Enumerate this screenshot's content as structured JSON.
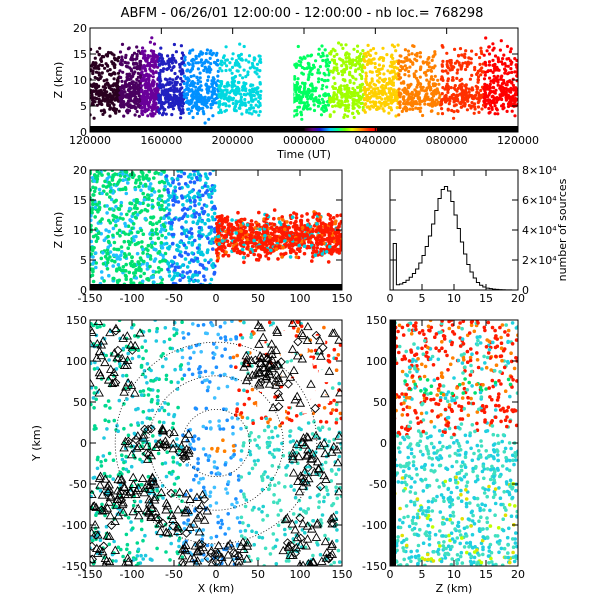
{
  "title": "ABFM - 06/26/01 12:00:00 - 12:00:00 - nb loc.= 768298",
  "colors": {
    "axis": "#000000",
    "background": "#ffffff"
  },
  "chart_data": [
    {
      "id": "time-height",
      "type": "scatter",
      "title": "ABFM - 06/26/01 12:00:00 - 12:00:00 - nb loc.= 768298",
      "xlabel": "Time (UT)",
      "ylabel": "Z (km)",
      "x_tick_labels": [
        "120000",
        "160000",
        "200000",
        "000000",
        "040000",
        "080000",
        "120000"
      ],
      "y_ticks": [
        0,
        5,
        10,
        15,
        20
      ],
      "ylim": [
        0,
        20
      ],
      "color_encoding": "time (rainbow, purple to red)"
    },
    {
      "id": "xz-projection",
      "type": "scatter",
      "xlabel": "",
      "ylabel": "Z (km)",
      "xlim": [
        -150,
        150
      ],
      "ylim": [
        0,
        20
      ],
      "x_ticks": [
        -150,
        -100,
        -50,
        0,
        50,
        100,
        150
      ],
      "y_ticks": [
        0,
        5,
        10,
        15,
        20
      ]
    },
    {
      "id": "altitude-histogram",
      "type": "line",
      "xlabel": "",
      "ylabel": "number of sources",
      "xlim": [
        0,
        20
      ],
      "ylim": [
        0,
        80000
      ],
      "x_ticks": [
        0,
        5,
        10,
        15,
        20
      ],
      "y_tick_labels": [
        "0",
        "2×10⁴",
        "4×10⁴",
        "6×10⁴",
        "8×10⁴"
      ],
      "series": [
        {
          "x": [
            0,
            0.5,
            1,
            1.5,
            2,
            2.5,
            3,
            3.5,
            4,
            4.5,
            5,
            5.5,
            6,
            6.5,
            7,
            7.5,
            8,
            8.5,
            9,
            9.5,
            10,
            10.5,
            11,
            11.5,
            12,
            12.5,
            13,
            13.5,
            14,
            14.5,
            15,
            15.5,
            16,
            16.5,
            17,
            17.5,
            18,
            18.5,
            19,
            19.5
          ],
          "y": [
            0,
            31000,
            3500,
            4000,
            5000,
            6500,
            8500,
            11000,
            14000,
            18000,
            23000,
            29000,
            36000,
            44000,
            53000,
            61000,
            67000,
            69000,
            66000,
            59000,
            50000,
            41000,
            32000,
            24000,
            17000,
            12000,
            8000,
            5000,
            3200,
            2000,
            1300,
            900,
            600,
            400,
            250,
            150,
            100,
            60,
            30,
            0
          ]
        }
      ]
    },
    {
      "id": "plan-view",
      "type": "scatter",
      "xlabel": "X (km)",
      "ylabel": "Y (km)",
      "xlim": [
        -150,
        150
      ],
      "ylim": [
        -150,
        150
      ],
      "x_ticks": [
        -150,
        -100,
        -50,
        0,
        50,
        100,
        150
      ],
      "y_ticks": [
        -150,
        -100,
        -50,
        0,
        50,
        100,
        150
      ]
    },
    {
      "id": "zy-projection",
      "type": "scatter",
      "xlabel": "Z (km)",
      "ylabel": "",
      "xlim": [
        0,
        20
      ],
      "ylim": [
        -150,
        150
      ],
      "x_ticks": [
        0,
        5,
        10,
        15,
        20
      ],
      "y_ticks": [
        -150,
        -100,
        -50,
        0,
        50,
        100,
        150
      ]
    }
  ]
}
